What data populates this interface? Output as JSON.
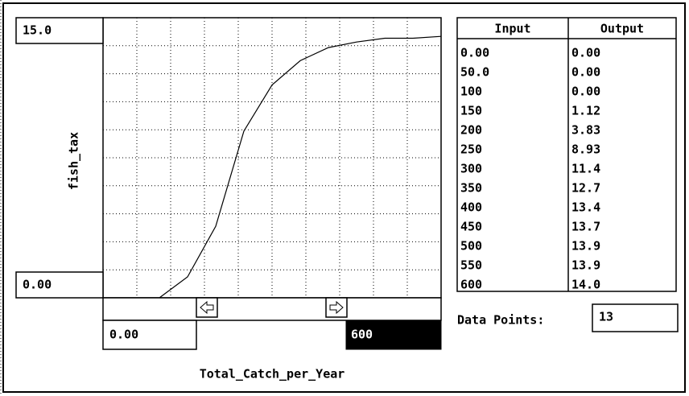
{
  "y_axis": {
    "label": "fish_tax",
    "max": "15.0",
    "min": "0.00"
  },
  "x_axis": {
    "label": "Total_Catch_per_Year",
    "min": "0.00",
    "max": "600"
  },
  "table": {
    "headers": [
      "Input",
      "Output"
    ],
    "rows": [
      [
        "0.00",
        "0.00"
      ],
      [
        "50.0",
        "0.00"
      ],
      [
        "100",
        "0.00"
      ],
      [
        "150",
        "1.12"
      ],
      [
        "200",
        "3.83"
      ],
      [
        "250",
        "8.93"
      ],
      [
        "300",
        "11.4"
      ],
      [
        "350",
        "12.7"
      ],
      [
        "400",
        "13.4"
      ],
      [
        "450",
        "13.7"
      ],
      [
        "500",
        "13.9"
      ],
      [
        "550",
        "13.9"
      ],
      [
        "600",
        "14.0"
      ]
    ]
  },
  "data_points": {
    "label": "Data Points:",
    "value": "13"
  }
}
